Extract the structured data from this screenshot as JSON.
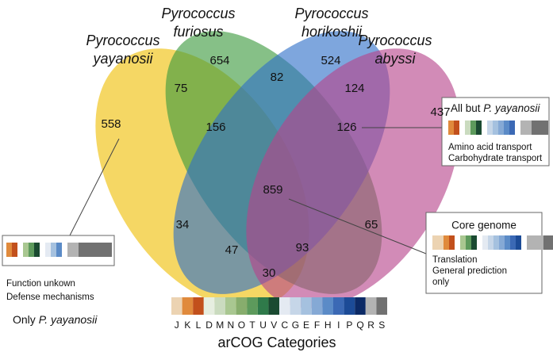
{
  "sets": [
    {
      "label_lines": [
        "Pyrococcus",
        "yayanosii"
      ],
      "color": "#efbf05"
    },
    {
      "label_lines": [
        "Pyrococcus",
        "furiosus"
      ],
      "color": "#3b9a3e"
    },
    {
      "label_lines": [
        "Pyrococcus",
        "horikoshii"
      ],
      "color": "#2f70c8"
    },
    {
      "label_lines": [
        "Pyrococcus",
        "abyssi"
      ],
      "color": "#b7438b"
    }
  ],
  "regions": [
    558,
    654,
    524,
    437,
    75,
    82,
    124,
    156,
    126,
    859,
    34,
    65,
    47,
    93,
    30
  ],
  "callouts": {
    "all_but": {
      "title_prefix": "All but ",
      "title_species": "P. yayanosii",
      "lines": [
        "Amino acid transport",
        "Carbohydrate transport"
      ]
    },
    "core": {
      "title": "Core genome",
      "lines": [
        "Translation",
        "General prediction",
        "only"
      ]
    },
    "only": {
      "lines": [
        "Function unkown",
        "Defense mechanisms"
      ],
      "footer_prefix": "Only ",
      "footer_species": "P. yayanosii"
    }
  },
  "legend": {
    "title": "arCOG Categories",
    "letters": [
      "J",
      "K",
      "L",
      "D",
      "M",
      "N",
      "O",
      "T",
      "U",
      "V",
      "C",
      "G",
      "E",
      "F",
      "H",
      "I",
      "P",
      "Q",
      "R",
      "S"
    ],
    "colors": [
      "#ecd3b2",
      "#e08a3c",
      "#c2501c",
      "#e6eee0",
      "#cadbbf",
      "#a9c791",
      "#87ad6d",
      "#5d9a5c",
      "#2f7a4a",
      "#1a4a31",
      "#e4eaf2",
      "#c6d6e8",
      "#a5c1df",
      "#85a9d5",
      "#5b8bc7",
      "#3b69b5",
      "#1c4b97",
      "#0c2a66",
      "#b3b3b3",
      "#717171"
    ]
  }
}
